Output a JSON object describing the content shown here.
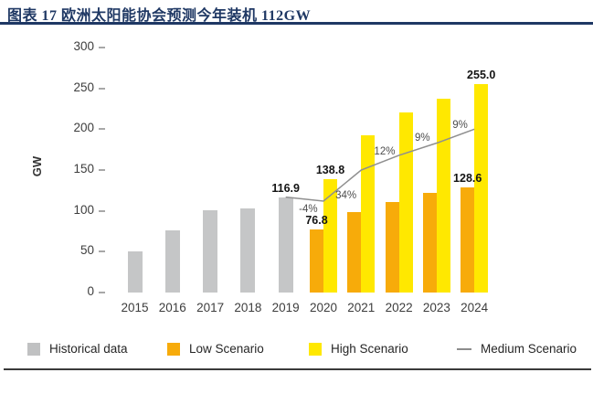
{
  "header": {
    "title": "图表 17 欧洲太阳能协会预测今年装机 112GW"
  },
  "chart_data": {
    "type": "bar",
    "title": "图表 17 欧洲太阳能协会预测今年装机 112GW",
    "xlabel": "",
    "ylabel": "GW",
    "ylim": [
      0,
      300
    ],
    "yticks": [
      0,
      50,
      100,
      150,
      200,
      250,
      300
    ],
    "grid": false,
    "legend_position": "bottom",
    "categories": [
      "2015",
      "2016",
      "2017",
      "2018",
      "2019",
      "2020",
      "2021",
      "2022",
      "2023",
      "2024"
    ],
    "series": [
      {
        "name": "Historical data",
        "type": "bar",
        "color": "#c5c6c7",
        "x": [
          "2015",
          "2016",
          "2017",
          "2018",
          "2019"
        ],
        "values": [
          50,
          76,
          101,
          103,
          116.9
        ]
      },
      {
        "name": "Low Scenario",
        "type": "bar",
        "color": "#f7ab0a",
        "x": [
          "2020",
          "2021",
          "2022",
          "2023",
          "2024"
        ],
        "values": [
          76.8,
          99,
          111,
          122,
          128.6
        ]
      },
      {
        "name": "High Scenario",
        "type": "bar",
        "color": "#ffe800",
        "x": [
          "2020",
          "2021",
          "2022",
          "2023",
          "2024"
        ],
        "values": [
          138.8,
          193,
          220,
          237,
          255.0
        ]
      },
      {
        "name": "Medium Scenario",
        "type": "line",
        "color": "#8f8f8f",
        "x": [
          "2019",
          "2020",
          "2021",
          "2022",
          "2023",
          "2024"
        ],
        "values": [
          116.9,
          112,
          150,
          168,
          183,
          200
        ]
      }
    ],
    "value_labels": [
      {
        "year": "2019",
        "series": "historical",
        "text": "116.9"
      },
      {
        "year": "2020",
        "series": "high",
        "text": "138.8"
      },
      {
        "year": "2020",
        "series": "low",
        "text": "76.8"
      },
      {
        "year": "2024",
        "series": "high",
        "text": "255.0"
      },
      {
        "year": "2024",
        "series": "low",
        "text": "128.6"
      }
    ],
    "growth_labels": [
      {
        "segment": "2019-2020",
        "text": "-4%",
        "position": "below"
      },
      {
        "segment": "2020-2021",
        "text": "34%",
        "position": "below"
      },
      {
        "segment": "2021-2022",
        "text": "12%",
        "position": "above"
      },
      {
        "segment": "2022-2023",
        "text": "9%",
        "position": "above"
      },
      {
        "segment": "2023-2024",
        "text": "9%",
        "position": "above"
      }
    ]
  },
  "legend": {
    "items": [
      {
        "label": "Historical data",
        "swatch": "square",
        "color": "#c0c1c2"
      },
      {
        "label": "Low Scenario",
        "swatch": "square",
        "color": "#f7ab0a"
      },
      {
        "label": "High Scenario",
        "swatch": "square",
        "color": "#ffe800"
      },
      {
        "label": "Medium Scenario",
        "swatch": "line",
        "color": "#8c8c8c"
      }
    ]
  }
}
